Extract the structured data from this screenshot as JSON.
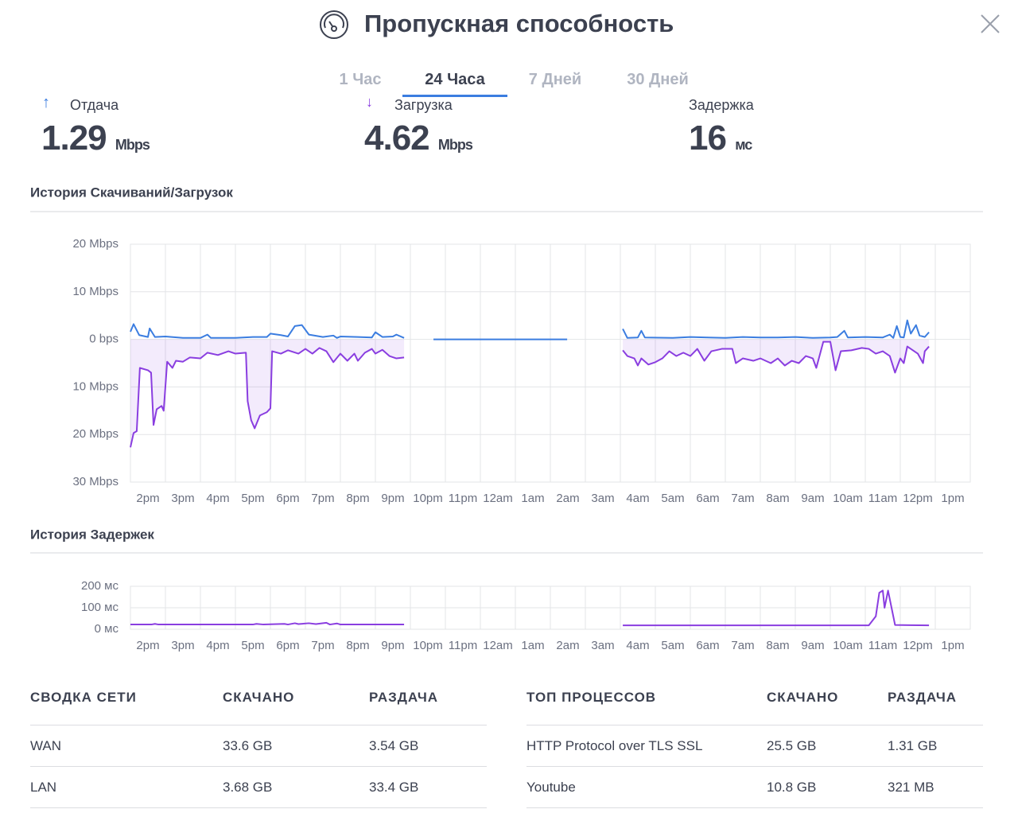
{
  "header": {
    "title": "Пропускная способность"
  },
  "tabs": {
    "items": [
      "1 Час",
      "24 Часа",
      "7 Дней",
      "30 Дней"
    ],
    "active": 1
  },
  "stats": [
    {
      "label": "Отдача",
      "value": 1.29,
      "unit": "Mbps"
    },
    {
      "label": "Загрузка",
      "value": 4.62,
      "unit": "Mbps"
    },
    {
      "label": "Задержка",
      "value": 16,
      "unit": "мс"
    }
  ],
  "chart_data": [
    {
      "type": "line",
      "title": "История Скачиваний/Загрузок",
      "xlim": [
        0,
        24
      ],
      "xticks": [
        {
          "value": 0,
          "label": "2pm"
        },
        {
          "value": 1,
          "label": "3pm"
        },
        {
          "value": 2,
          "label": "4pm"
        },
        {
          "value": 3,
          "label": "5pm"
        },
        {
          "value": 4,
          "label": "6pm"
        },
        {
          "value": 5,
          "label": "7pm"
        },
        {
          "value": 6,
          "label": "8pm"
        },
        {
          "value": 7,
          "label": "9pm"
        },
        {
          "value": 8,
          "label": "10pm"
        },
        {
          "value": 9,
          "label": "11pm"
        },
        {
          "value": 10,
          "label": "12am"
        },
        {
          "value": 11,
          "label": "1am"
        },
        {
          "value": 12,
          "label": "2am"
        },
        {
          "value": 13,
          "label": "3am"
        },
        {
          "value": 14,
          "label": "4am"
        },
        {
          "value": 15,
          "label": "5am"
        },
        {
          "value": 16,
          "label": "6am"
        },
        {
          "value": 17,
          "label": "7am"
        },
        {
          "value": 18,
          "label": "8am"
        },
        {
          "value": 19,
          "label": "9am"
        },
        {
          "value": 20,
          "label": "10am"
        },
        {
          "value": 21,
          "label": "11am"
        },
        {
          "value": 22,
          "label": "12pm"
        },
        {
          "value": 23,
          "label": "1pm"
        }
      ],
      "ylim": [
        -30,
        20
      ],
      "yticks": [
        {
          "value": 20,
          "label": "20 Mbps"
        },
        {
          "value": 10,
          "label": "10 Mbps"
        },
        {
          "value": 0,
          "label": "0 bps"
        },
        {
          "value": -10,
          "label": "10 Mbps"
        },
        {
          "value": -20,
          "label": "20 Mbps"
        },
        {
          "value": -30,
          "label": "30 Mbps"
        }
      ],
      "grid": true,
      "series": [
        {
          "color": "#3b7de0",
          "x": [
            0,
            0.09,
            0.25,
            0.5,
            0.55,
            0.7,
            1.0,
            1.5,
            2.0,
            2.2,
            2.3,
            3.0,
            3.5,
            3.9,
            4.0,
            4.3,
            4.5,
            4.7,
            4.9,
            5.1,
            5.5,
            5.8,
            5.9,
            6.0,
            6.5,
            6.9,
            7.0,
            7.2,
            7.5,
            7.6,
            7.82,
            null,
            8.66,
            12.48,
            null,
            14.07,
            14.2,
            14.5,
            14.6,
            14.7,
            15.5,
            16.0,
            16.5,
            17.0,
            17.5,
            18.0,
            18.5,
            19.0,
            19.5,
            20.0,
            20.2,
            20.4,
            20.5,
            21.0,
            21.5,
            21.7,
            21.8,
            21.9,
            22.0,
            22.1,
            22.2,
            22.3,
            22.45,
            22.55,
            22.7,
            22.82
          ],
          "values": [
            1.6,
            3.2,
            0.9,
            0.5,
            2.3,
            0.5,
            0.6,
            0.3,
            0.3,
            1.0,
            0.3,
            0.3,
            0.5,
            0.5,
            1.2,
            0.9,
            0.6,
            2.8,
            3.0,
            1.0,
            0.5,
            0.8,
            0.3,
            0.6,
            0.5,
            0.4,
            1.5,
            0.5,
            0.6,
            1.0,
            0.3,
            null,
            0,
            0,
            null,
            2.2,
            0.3,
            0.4,
            1.8,
            0.4,
            0.3,
            0.5,
            0.4,
            0.3,
            0.5,
            0.4,
            0.4,
            0.5,
            0.3,
            0.4,
            0.5,
            1.8,
            0.4,
            0.5,
            0.4,
            1.0,
            0.3,
            2.8,
            0.5,
            0.4,
            4.0,
            1.2,
            3.0,
            0.8,
            0.5,
            1.5
          ]
        },
        {
          "color": "#8a3ee0",
          "area": true,
          "x": [
            0,
            0.09,
            0.18,
            0.27,
            0.5,
            0.59,
            0.66,
            0.75,
            0.89,
            0.95,
            1.05,
            1.2,
            1.3,
            1.5,
            1.7,
            2.0,
            2.2,
            2.5,
            2.8,
            3.0,
            3.3,
            3.35,
            3.45,
            3.55,
            3.7,
            3.9,
            4.0,
            4.05,
            4.3,
            4.5,
            4.8,
            5.0,
            5.2,
            5.4,
            5.6,
            5.8,
            6.0,
            6.2,
            6.4,
            6.5,
            6.7,
            6.9,
            7.0,
            7.2,
            7.4,
            7.6,
            7.82,
            null,
            14.07,
            14.2,
            14.4,
            14.5,
            14.6,
            14.8,
            15.0,
            15.2,
            15.4,
            15.6,
            15.8,
            16.0,
            16.2,
            16.4,
            16.6,
            16.9,
            17.2,
            17.3,
            17.5,
            17.8,
            18.0,
            18.3,
            18.5,
            18.7,
            18.9,
            19.1,
            19.3,
            19.5,
            19.6,
            19.8,
            20.0,
            20.15,
            20.3,
            20.6,
            20.9,
            21.1,
            21.3,
            21.5,
            21.7,
            21.85,
            22.0,
            22.1,
            22.2,
            22.5,
            22.65,
            22.7,
            22.82
          ],
          "values": [
            -22.7,
            -19.7,
            -19.3,
            -6,
            -6.5,
            -7,
            -18,
            -14.7,
            -14,
            -15,
            -4.7,
            -6,
            -4.5,
            -4.7,
            -3.8,
            -4,
            -2.8,
            -3.3,
            -2.5,
            -3,
            -2.8,
            -13,
            -17,
            -18.7,
            -16,
            -15.3,
            -14.5,
            -2.5,
            -3,
            -2.3,
            -3,
            -2,
            -3,
            -1.8,
            -2.5,
            -4.8,
            -3,
            -4.5,
            -3,
            -4.5,
            -2.8,
            -2.0,
            -3,
            -2.2,
            -3.5,
            -4,
            -3.8,
            null,
            -2.3,
            -3.5,
            -4.0,
            -5.5,
            -4,
            -5.3,
            -4.8,
            -4,
            -2.5,
            -3.5,
            -2.8,
            -3.5,
            -2,
            -4.5,
            -2.5,
            -2,
            -2,
            -5,
            -4,
            -4.5,
            -4,
            -5,
            -4,
            -5.5,
            -4.5,
            -5,
            -3.5,
            -4,
            -6,
            -0.5,
            -0.5,
            -6.5,
            -2.5,
            -2.3,
            -1.8,
            -2,
            -3,
            -2.5,
            -3.5,
            -7,
            -4,
            -5,
            -1.5,
            -3,
            -5,
            -2.5,
            -1.5
          ]
        }
      ]
    },
    {
      "type": "line",
      "title": "История Задержек",
      "xlim": [
        0,
        24
      ],
      "xticks": [
        {
          "value": 0,
          "label": "2pm"
        },
        {
          "value": 1,
          "label": "3pm"
        },
        {
          "value": 2,
          "label": "4pm"
        },
        {
          "value": 3,
          "label": "5pm"
        },
        {
          "value": 4,
          "label": "6pm"
        },
        {
          "value": 5,
          "label": "7pm"
        },
        {
          "value": 6,
          "label": "8pm"
        },
        {
          "value": 7,
          "label": "9pm"
        },
        {
          "value": 8,
          "label": "10pm"
        },
        {
          "value": 9,
          "label": "11pm"
        },
        {
          "value": 10,
          "label": "12am"
        },
        {
          "value": 11,
          "label": "1am"
        },
        {
          "value": 12,
          "label": "2am"
        },
        {
          "value": 13,
          "label": "3am"
        },
        {
          "value": 14,
          "label": "4am"
        },
        {
          "value": 15,
          "label": "5am"
        },
        {
          "value": 16,
          "label": "6am"
        },
        {
          "value": 17,
          "label": "7am"
        },
        {
          "value": 18,
          "label": "8am"
        },
        {
          "value": 19,
          "label": "9am"
        },
        {
          "value": 20,
          "label": "10am"
        },
        {
          "value": 21,
          "label": "11am"
        },
        {
          "value": 22,
          "label": "12pm"
        },
        {
          "value": 23,
          "label": "1pm"
        }
      ],
      "ylim": [
        0,
        200
      ],
      "yticks": [
        {
          "value": 200,
          "label": "200 мс"
        },
        {
          "value": 100,
          "label": "100 мс"
        },
        {
          "value": 0,
          "label": "0 мс"
        }
      ],
      "grid": true,
      "series": [
        {
          "color": "#8a3ee0",
          "x": [
            0,
            0.6,
            0.7,
            0.8,
            3.5,
            3.6,
            3.8,
            4.4,
            4.5,
            4.7,
            4.8,
            5.1,
            5.3,
            5.6,
            5.7,
            5.9,
            6.0,
            7.82,
            null,
            14.07,
            19.5,
            21.1,
            21.3,
            21.4,
            21.5,
            21.55,
            21.65,
            21.75,
            21.85,
            22.82
          ],
          "values": [
            22,
            22,
            25,
            22,
            22,
            25,
            22,
            25,
            22,
            28,
            24,
            28,
            24,
            30,
            22,
            27,
            22,
            22,
            null,
            18,
            18,
            18,
            60,
            170,
            180,
            100,
            180,
            100,
            20,
            18
          ]
        }
      ]
    }
  ],
  "network_summary": {
    "headers": [
      "СВОДКА СЕТИ",
      "СКАЧАНО",
      "РАЗДАЧА"
    ],
    "rows": [
      [
        "WAN",
        "33.6 GB",
        "3.54 GB"
      ],
      [
        "LAN",
        "3.68 GB",
        "33.4 GB"
      ]
    ]
  },
  "top_processes": {
    "headers": [
      "ТОП ПРОЦЕССОВ",
      "СКАЧАНО",
      "РАЗДАЧА"
    ],
    "rows": [
      [
        "HTTP Protocol over TLS SSL",
        "25.5 GB",
        "1.31 GB"
      ],
      [
        "Youtube",
        "10.8 GB",
        "321 MB"
      ]
    ]
  }
}
